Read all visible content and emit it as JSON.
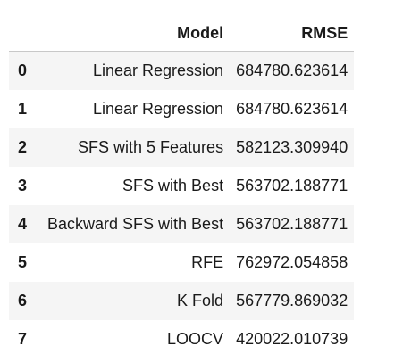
{
  "table": {
    "columns": [
      "Model",
      "RMSE"
    ],
    "rows": [
      {
        "index": "0",
        "model": "Linear Regression",
        "rmse": "684780.623614"
      },
      {
        "index": "1",
        "model": "Linear Regression",
        "rmse": "684780.623614"
      },
      {
        "index": "2",
        "model": "SFS with 5 Features",
        "rmse": "582123.309940"
      },
      {
        "index": "3",
        "model": "SFS with Best",
        "rmse": "563702.188771"
      },
      {
        "index": "4",
        "model": "Backward SFS with Best",
        "rmse": "563702.188771"
      },
      {
        "index": "5",
        "model": "RFE",
        "rmse": "762972.054858"
      },
      {
        "index": "6",
        "model": "K Fold",
        "rmse": "567779.869032"
      },
      {
        "index": "7",
        "model": "LOOCV",
        "rmse": "420022.010739"
      }
    ]
  }
}
